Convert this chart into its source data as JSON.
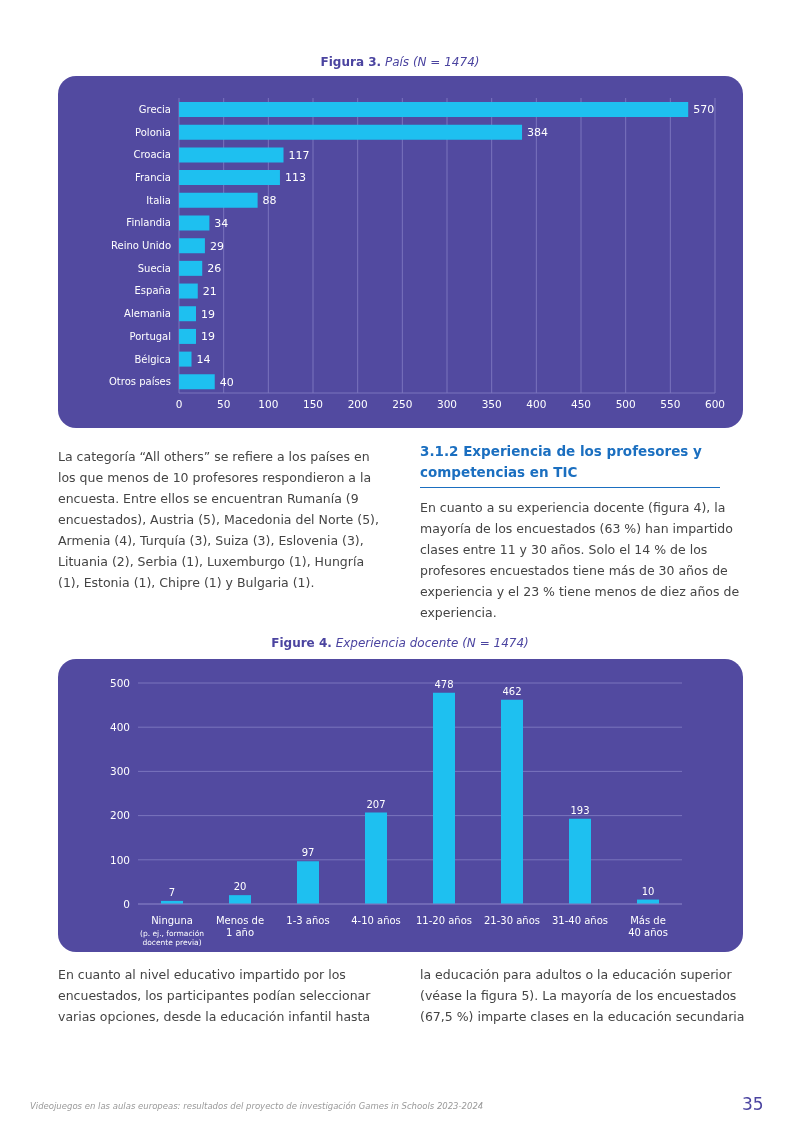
{
  "chart_data": [
    {
      "type": "bar",
      "orientation": "horizontal",
      "title": "Figura 3.",
      "subtitle": "País (N = 1474)",
      "categories": [
        "Grecia",
        "Polonia",
        "Croacia",
        "Francia",
        "Italia",
        "Finlandia",
        "Reino Unido",
        "Suecia",
        "España",
        "Alemania",
        "Portugal",
        "Bélgica",
        "Otros países"
      ],
      "values": [
        570,
        384,
        117,
        113,
        88,
        34,
        29,
        26,
        21,
        19,
        19,
        14,
        40
      ],
      "color": "#1ec0f0",
      "xlim": [
        0,
        600
      ],
      "xticks": [
        0,
        50,
        100,
        150,
        200,
        250,
        300,
        350,
        400,
        450,
        500,
        550,
        600
      ],
      "grid": "x",
      "data_labels": true,
      "annotations": [
        "La categoría “All others” se refiere a los países en los que menos de 10 profesores respondieron a la encuesta. Entre ellos se encuentran Rumanía (9 encuestados), Austria (5), Macedonia del Norte (5), Armenia (4), Turquía (3), Suiza (3), Eslovenia (3), Lituania (2), Serbia (1), Luxemburgo (1), Hungría (1), Estonia (1), Chipre (1) y Bulgaria (1).",
        "3.1.2  Experiencia de los profesores y competencias en TIC",
        "En cuanto a su experiencia docente (figura 4), la mayoría de los encuestados (63 %) han impartido clases entre 11 y 30 años. Solo el 14 % de los profesores encuestados tiene más de 30 años de experiencia y el 23 % tiene menos de diez años de experiencia."
      ]
    },
    {
      "type": "bar",
      "title": "Figure 4.",
      "subtitle": "Experiencia docente (N = 1474)",
      "categories": [
        "Ninguna\n(p. ej., formación\ndocente previa)",
        "Menos de\n1 año",
        "1-3 años",
        "4-10 años",
        "11-20 años",
        "21-30 años",
        "31-40 años",
        "Más de\n40 años"
      ],
      "values": [
        7,
        20,
        97,
        207,
        478,
        462,
        193,
        10
      ],
      "color": "#1ec0f0",
      "ylim": [
        0,
        500
      ],
      "yticks": [
        0,
        100,
        200,
        300,
        400,
        500
      ],
      "grid": "y",
      "data_labels": true,
      "annotations": [
        "En cuanto al nivel educativo impartido por los encuestados, los participantes podían seleccionar varias opciones, desde la educación infantil hasta",
        "la educación para adultos o la educación superior (véase la figura 5). La mayoría de los encuestados (67,5 %) imparte clases en la educación secundaria",
        "Videojuegos en las aulas europeas: resultados del proyecto de investigación Games in Schools 2023-2024",
        "35"
      ]
    }
  ]
}
